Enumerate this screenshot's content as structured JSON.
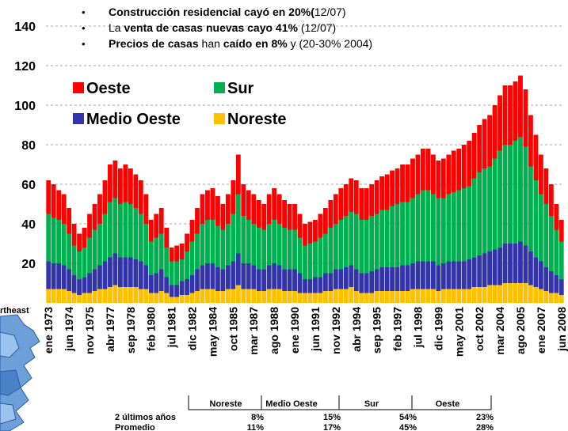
{
  "chart_data": {
    "type": "stacked_bar",
    "bullets": [
      [
        {
          "text": "Construcción residencial cayó en 20%(",
          "bold": true
        },
        {
          "text": "12/07)",
          "bold": false
        }
      ],
      [
        {
          "text": "La ",
          "bold": false
        },
        {
          "text": "venta de casas nuevas cayo 41%",
          "bold": true
        },
        {
          "text": " (12/07)",
          "bold": false
        }
      ],
      [
        {
          "text": "Precios de casas",
          "bold": true
        },
        {
          "text": " han ",
          "bold": false
        },
        {
          "text": "caído en 8%",
          "bold": true
        },
        {
          "text": " y (20-30% 2004)",
          "bold": false
        }
      ]
    ],
    "categories": [
      "ene 1973",
      null,
      null,
      null,
      "jun 1974",
      null,
      null,
      null,
      "nov 1975",
      null,
      null,
      null,
      "abr 1977",
      null,
      null,
      null,
      "sep 1978",
      null,
      null,
      null,
      "feb 1980",
      null,
      null,
      null,
      "jul 1981",
      null,
      null,
      null,
      "dic 1982",
      null,
      null,
      null,
      "may 1984",
      null,
      null,
      null,
      "oct 1985",
      null,
      null,
      null,
      "mar 1987",
      null,
      null,
      null,
      "ago 1988",
      null,
      null,
      null,
      "ene 1990",
      null,
      null,
      null,
      "jun 1991",
      null,
      null,
      null,
      "nov 1992",
      null,
      null,
      null,
      "abr 1994",
      null,
      null,
      null,
      "sep 1995",
      null,
      null,
      null,
      "feb 1997",
      null,
      null,
      null,
      "jul 1998",
      null,
      null,
      null,
      "dic 1999",
      null,
      null,
      null,
      "may 2001",
      null,
      null,
      null,
      "oct 2002",
      null,
      null,
      null,
      "mar 2004",
      null,
      null,
      null,
      "ago 2005",
      null,
      null,
      null,
      "ene 2007",
      null,
      null,
      null,
      "jun 2008"
    ],
    "series": [
      {
        "name": "Oeste",
        "color": "#ff0000",
        "values": [
          17,
          17,
          15,
          15,
          13,
          11,
          9,
          10,
          12,
          13,
          15,
          17,
          19,
          19,
          18,
          19,
          18,
          17,
          17,
          15,
          11,
          12,
          13,
          10,
          7,
          8,
          8,
          9,
          11,
          13,
          15,
          15,
          16,
          15,
          13,
          15,
          17,
          20,
          16,
          15,
          15,
          14,
          13,
          15,
          16,
          15,
          14,
          13,
          13,
          12,
          11,
          11,
          11,
          12,
          13,
          14,
          15,
          16,
          16,
          17,
          17,
          16,
          16,
          16,
          17,
          17,
          18,
          18,
          18,
          19,
          19,
          20,
          20,
          21,
          21,
          20,
          19,
          20,
          20,
          21,
          21,
          22,
          23,
          23,
          24,
          25,
          26,
          27,
          28,
          30,
          30,
          30,
          31,
          29,
          26,
          23,
          20,
          18,
          16,
          13,
          11
        ]
      },
      {
        "name": "Sur",
        "color": "#00b050",
        "values": [
          24,
          23,
          22,
          21,
          18,
          15,
          14,
          15,
          18,
          20,
          21,
          24,
          28,
          28,
          27,
          28,
          27,
          26,
          24,
          21,
          17,
          18,
          18,
          15,
          12,
          12,
          11,
          14,
          17,
          18,
          21,
          22,
          22,
          21,
          20,
          21,
          24,
          30,
          24,
          22,
          21,
          21,
          20,
          21,
          22,
          21,
          21,
          20,
          20,
          18,
          17,
          18,
          18,
          20,
          20,
          23,
          23,
          25,
          26,
          27,
          28,
          27,
          27,
          28,
          28,
          29,
          29,
          31,
          32,
          32,
          32,
          33,
          34,
          36,
          36,
          34,
          34,
          33,
          34,
          35,
          36,
          37,
          37,
          40,
          42,
          43,
          43,
          46,
          49,
          50,
          50,
          52,
          53,
          50,
          43,
          39,
          34,
          32,
          28,
          23,
          19
        ]
      },
      {
        "name": "Medio Oeste",
        "color": "#3333aa",
        "values": [
          14,
          13,
          13,
          12,
          11,
          9,
          8,
          8,
          10,
          11,
          12,
          14,
          15,
          16,
          15,
          15,
          15,
          14,
          14,
          12,
          9,
          10,
          11,
          8,
          6,
          6,
          7,
          8,
          9,
          11,
          12,
          13,
          13,
          12,
          11,
          12,
          14,
          16,
          13,
          13,
          12,
          11,
          11,
          12,
          13,
          12,
          11,
          11,
          11,
          10,
          7,
          7,
          8,
          8,
          9,
          9,
          10,
          10,
          11,
          11,
          11,
          10,
          10,
          11,
          11,
          12,
          12,
          12,
          12,
          13,
          13,
          13,
          14,
          14,
          14,
          14,
          13,
          13,
          14,
          14,
          14,
          14,
          15,
          15,
          16,
          17,
          17,
          18,
          19,
          20,
          20,
          20,
          21,
          19,
          17,
          15,
          14,
          12,
          11,
          9,
          8
        ]
      },
      {
        "name": "Noreste",
        "color": "#ffc000",
        "values": [
          7,
          7,
          7,
          7,
          6,
          5,
          4,
          5,
          5,
          6,
          7,
          7,
          8,
          9,
          8,
          8,
          8,
          8,
          7,
          7,
          5,
          5,
          6,
          5,
          3,
          3,
          4,
          4,
          5,
          6,
          7,
          7,
          7,
          6,
          6,
          7,
          7,
          9,
          7,
          7,
          7,
          6,
          6,
          7,
          7,
          7,
          6,
          6,
          6,
          5,
          5,
          5,
          5,
          5,
          6,
          6,
          7,
          7,
          7,
          8,
          6,
          5,
          5,
          5,
          6,
          6,
          6,
          6,
          6,
          6,
          6,
          7,
          7,
          7,
          7,
          7,
          6,
          7,
          7,
          7,
          7,
          7,
          7,
          8,
          8,
          8,
          9,
          9,
          9,
          10,
          10,
          10,
          10,
          10,
          9,
          8,
          7,
          6,
          5,
          5,
          4
        ]
      }
    ],
    "ylim": [
      0,
      140
    ],
    "yticks": [
      20,
      40,
      60,
      80,
      100,
      120,
      140
    ],
    "grid": true,
    "map_label": "rtheast",
    "table": {
      "headers": [
        "Noreste",
        "Medio Oeste",
        "Sur",
        "Oeste"
      ],
      "rows": [
        [
          "2 últimos años",
          "8%",
          "15%",
          "54%",
          "23%"
        ],
        [
          "Promedio",
          "11%",
          "17%",
          "45%",
          "28%"
        ]
      ]
    }
  }
}
